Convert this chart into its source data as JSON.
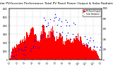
{
  "title": "Solar PV/Inverter Performance Total PV Panel Power Output & Solar Radiation",
  "title_fontsize": 3.2,
  "background_color": "#ffffff",
  "plot_bg_color": "#ffffff",
  "bar_color": "#ff0000",
  "scatter_color": "#0000ff",
  "grid_color": "#bbbbbb",
  "legend_pv_color": "#ff0000",
  "legend_solar_color": "#0000ff",
  "legend_pv_label": "PV Panel Output",
  "legend_solar_label": "Solar Radiation",
  "num_points": 365,
  "ylim_left": [
    0,
    6000
  ],
  "ylim_right": [
    0,
    1000
  ],
  "yticks_left": [
    0,
    1000,
    2000,
    3000,
    4000,
    5000,
    6000
  ],
  "yticks_right": [
    0,
    200,
    400,
    600,
    800,
    1000
  ],
  "xtick_labels": [
    "1/1",
    "2/1",
    "3/1",
    "4/1",
    "5/1",
    "6/1",
    "7/1",
    "8/1",
    "9/1",
    "10/1",
    "11/1",
    "12/1",
    "1/1"
  ],
  "figsize": [
    1.6,
    1.0
  ],
  "dpi": 100
}
